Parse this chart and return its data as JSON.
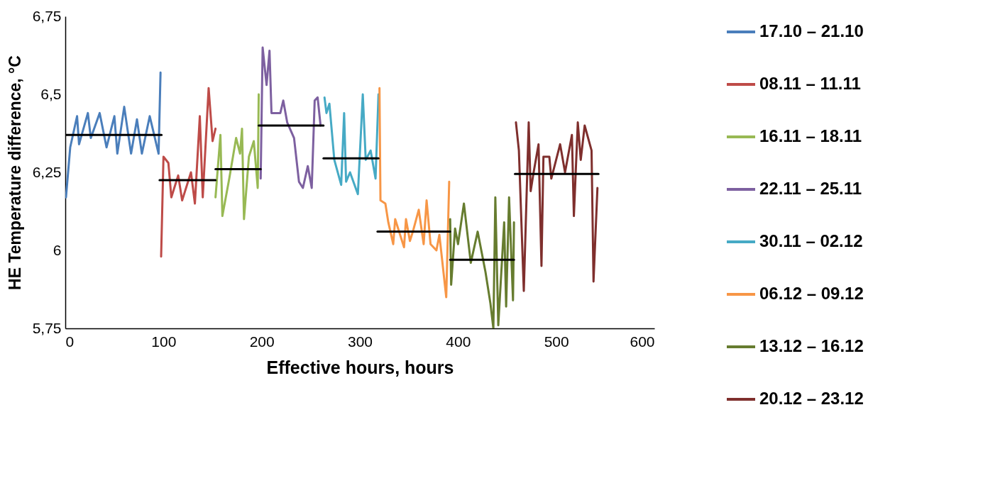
{
  "chart_data": {
    "type": "line",
    "xlabel": "Effective hours, hours",
    "ylabel": "HE Temperature difference, °C",
    "xlim": [
      0,
      600
    ],
    "xticks": [
      0,
      100,
      200,
      300,
      400,
      500,
      600
    ],
    "ylim": [
      5.75,
      6.75
    ],
    "yticks": [
      {
        "value": 5.75,
        "label": "5,75"
      },
      6,
      {
        "value": 6.25,
        "label": "6,25"
      },
      {
        "value": 6.5,
        "label": "6,5"
      },
      {
        "value": 6.75,
        "label": "6,75"
      }
    ],
    "grid": false,
    "legend": "right",
    "series": [
      {
        "name": "17.10 – 21.10",
        "color": "#4a7ebb",
        "x": [
          0.7,
          5,
          12,
          14,
          23,
          26,
          35,
          42,
          50,
          53,
          60,
          67,
          73,
          78,
          86,
          89,
          95,
          97
        ],
        "values": [
          6.17,
          6.33,
          6.43,
          6.34,
          6.44,
          6.36,
          6.44,
          6.33,
          6.43,
          6.31,
          6.46,
          6.31,
          6.42,
          6.31,
          6.43,
          6.39,
          6.31,
          6.57
        ]
      },
      {
        "name": "08.11 – 11.11",
        "color": "#be4b48",
        "x": [
          97.6,
          100,
          105,
          108,
          115,
          119,
          128,
          132,
          137,
          140,
          146,
          150,
          153
        ],
        "values": [
          5.98,
          6.3,
          6.28,
          6.17,
          6.24,
          6.16,
          6.25,
          6.15,
          6.43,
          6.17,
          6.52,
          6.35,
          6.39
        ]
      },
      {
        "name": "16.11 – 18.11",
        "color": "#98b954",
        "x": [
          153,
          158,
          160,
          167,
          174,
          178,
          180,
          182,
          187,
          192,
          196,
          197
        ],
        "values": [
          6.17,
          6.37,
          6.11,
          6.23,
          6.36,
          6.31,
          6.39,
          6.1,
          6.3,
          6.35,
          6.2,
          6.5
        ]
      },
      {
        "name": "22.11 – 25.11",
        "color": "#7d60a0",
        "x": [
          199,
          201,
          205,
          208,
          210,
          219,
          222,
          226,
          233,
          238,
          242,
          247,
          251,
          254,
          257,
          260
        ],
        "values": [
          6.23,
          6.65,
          6.53,
          6.64,
          6.44,
          6.44,
          6.48,
          6.41,
          6.36,
          6.22,
          6.2,
          6.27,
          6.2,
          6.48,
          6.49,
          6.4
        ]
      },
      {
        "name": "30.11 – 02.12",
        "color": "#46aac5",
        "x": [
          264,
          266,
          269,
          274,
          281,
          284,
          286,
          290,
          298,
          303,
          306,
          311,
          316,
          319
        ],
        "values": [
          6.49,
          6.44,
          6.47,
          6.29,
          6.21,
          6.44,
          6.22,
          6.25,
          6.18,
          6.5,
          6.29,
          6.32,
          6.23,
          6.5
        ]
      },
      {
        "name": "06.12 – 09.12",
        "color": "#f79646",
        "x": [
          320,
          321,
          326,
          329,
          334,
          336,
          345,
          347,
          351,
          354,
          360,
          365,
          368,
          372,
          378,
          381,
          388,
          391
        ],
        "values": [
          6.52,
          6.16,
          6.15,
          6.09,
          6.02,
          6.1,
          6.01,
          6.1,
          6.03,
          6.06,
          6.13,
          6.02,
          6.16,
          6.02,
          6.0,
          6.05,
          5.85,
          6.22
        ]
      },
      {
        "name": "13.12 – 16.12",
        "color": "#667c2f",
        "x": [
          392,
          393,
          397,
          400,
          406,
          413,
          420,
          428,
          433,
          436,
          438,
          441,
          447,
          449,
          452,
          456,
          457
        ],
        "values": [
          6.1,
          5.89,
          6.07,
          6.02,
          6.15,
          5.96,
          6.06,
          5.93,
          5.83,
          5.75,
          6.17,
          5.76,
          6.09,
          5.82,
          6.17,
          5.84,
          6.09
        ]
      },
      {
        "name": "20.12 – 23.12",
        "color": "#7f2f2d",
        "x": [
          459,
          462,
          467,
          472,
          474,
          477,
          482,
          485,
          487,
          493,
          495,
          504,
          509,
          516,
          518,
          522,
          525,
          529,
          536,
          538,
          542
        ],
        "values": [
          6.41,
          6.32,
          5.87,
          6.41,
          6.19,
          6.25,
          6.34,
          5.95,
          6.3,
          6.3,
          6.23,
          6.34,
          6.25,
          6.37,
          6.11,
          6.41,
          6.29,
          6.4,
          6.32,
          5.9,
          6.2
        ]
      },
      {
        "color": "#000000",
        "x": [
          0,
          98
        ],
        "values": [
          6.37,
          6.37
        ]
      },
      {
        "color": "#000000",
        "x": [
          96,
          153
        ],
        "values": [
          6.225,
          6.225
        ]
      },
      {
        "color": "#000000",
        "x": [
          153,
          199
        ],
        "values": [
          6.26,
          6.26
        ]
      },
      {
        "color": "#000000",
        "x": [
          197,
          263
        ],
        "values": [
          6.4,
          6.4
        ]
      },
      {
        "color": "#000000",
        "x": [
          263,
          319
        ],
        "values": [
          6.295,
          6.295
        ]
      },
      {
        "color": "#000000",
        "x": [
          318,
          392
        ],
        "values": [
          6.06,
          6.06
        ]
      },
      {
        "color": "#000000",
        "x": [
          392,
          457
        ],
        "values": [
          5.97,
          5.97
        ]
      },
      {
        "color": "#000000",
        "x": [
          458,
          543
        ],
        "values": [
          6.245,
          6.245
        ]
      }
    ]
  }
}
